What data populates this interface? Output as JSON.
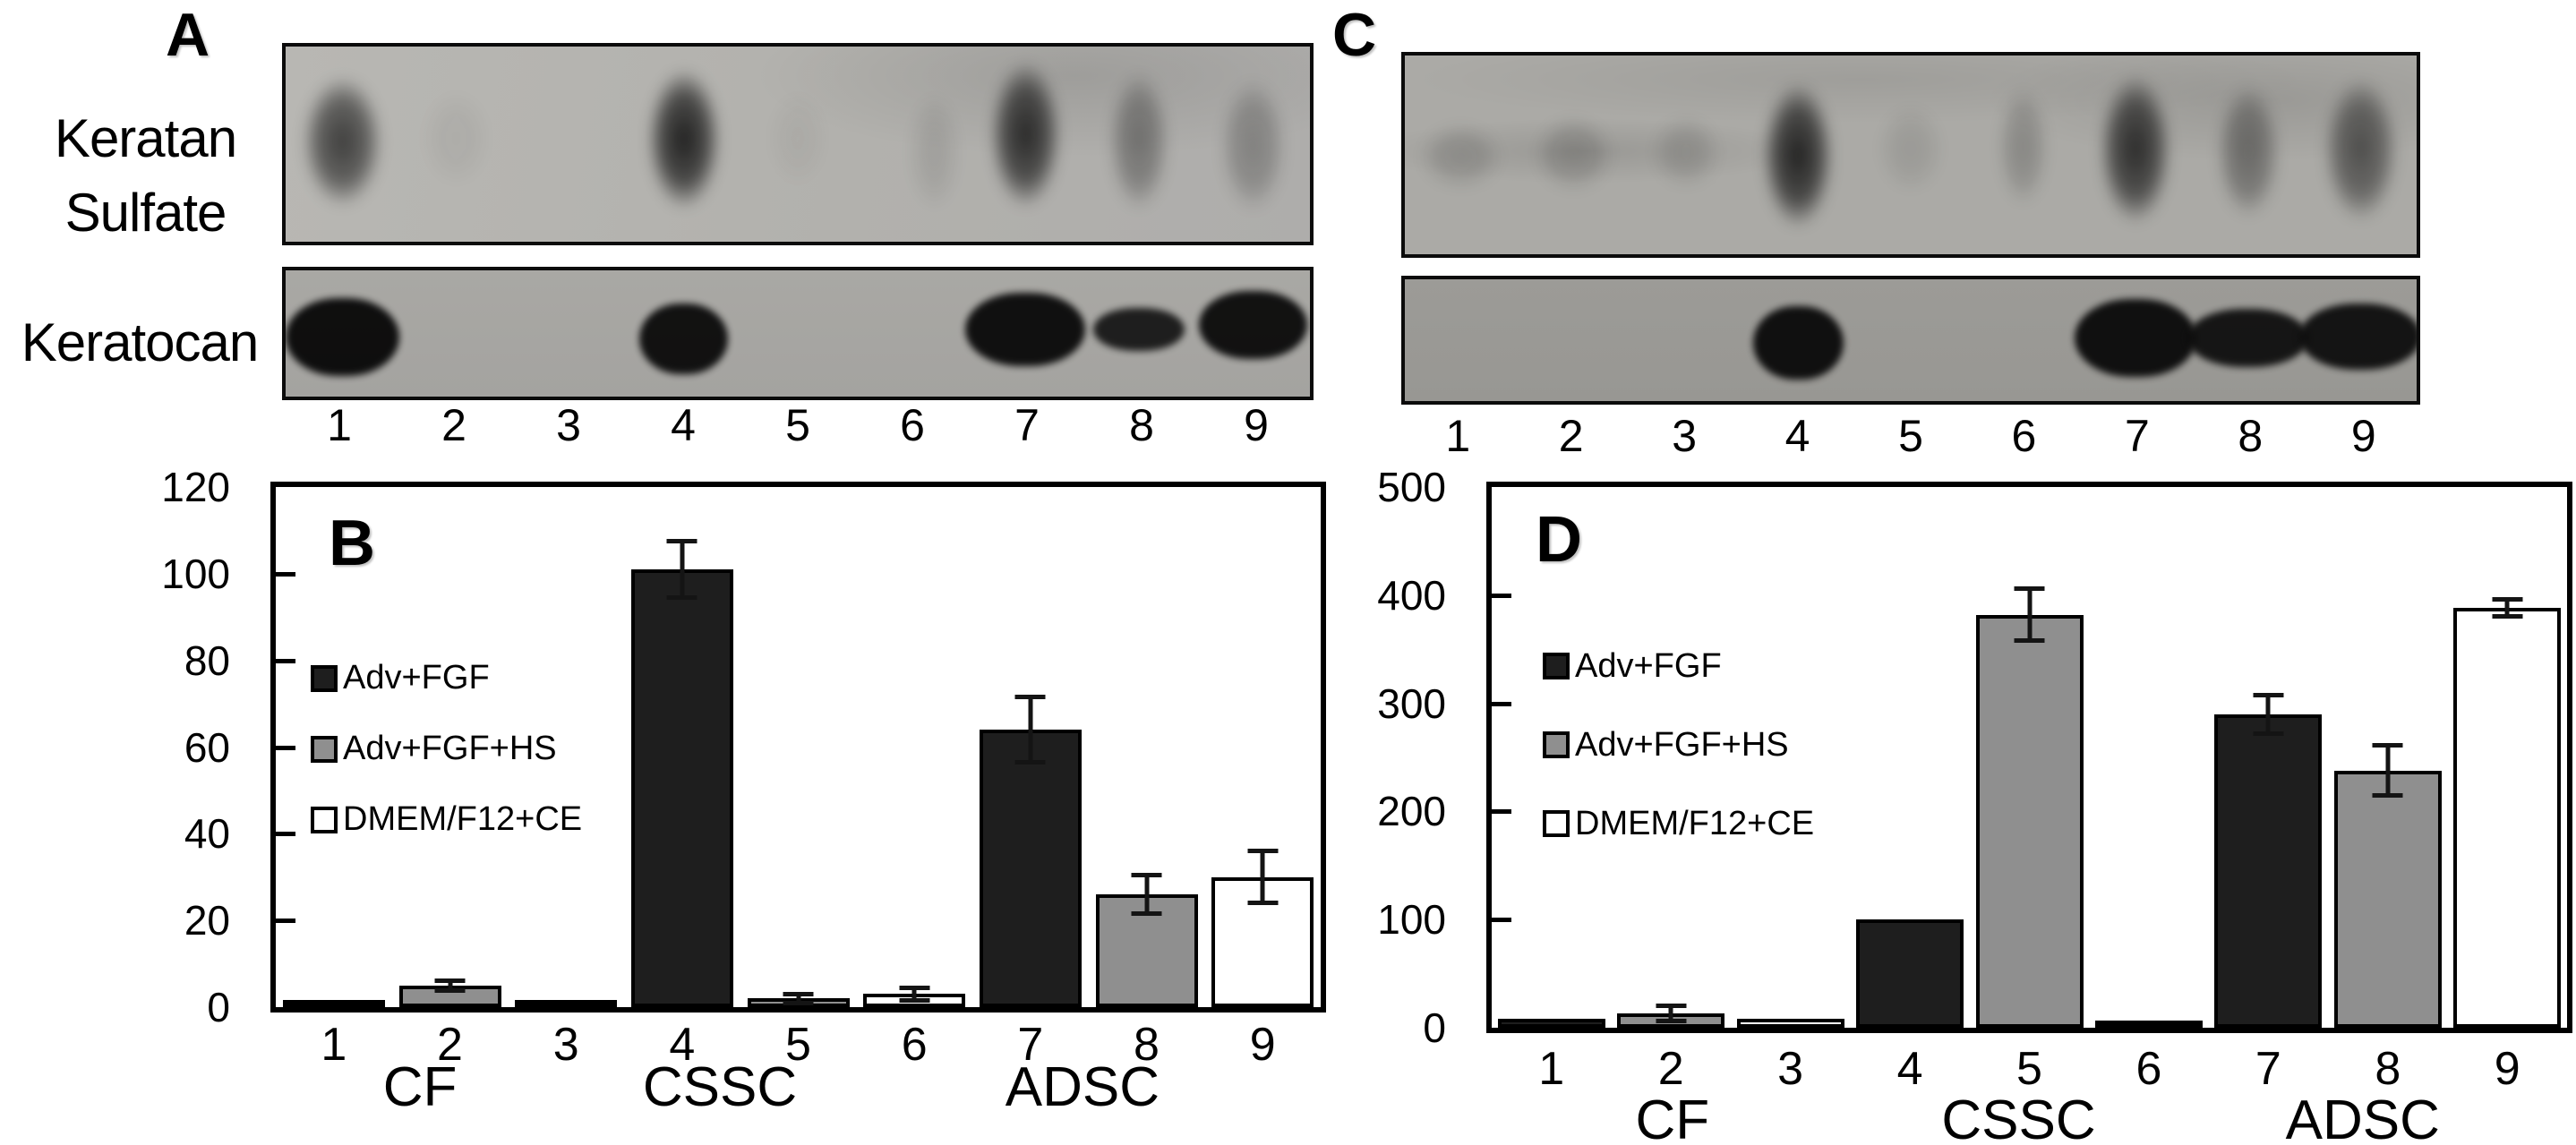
{
  "figure": {
    "panel_a": {
      "letter": "A",
      "blot1_label_line1": "Keratan",
      "blot1_label_line2": "Sulfate",
      "blot2_label": "Keratocan",
      "lane_labels": [
        "1",
        "2",
        "3",
        "4",
        "5",
        "6",
        "7",
        "8",
        "9"
      ],
      "blot1_name": "keratan-sulfate-blot",
      "blot2_name": "keratocan-blot",
      "blot1_bands": [
        {
          "o": 0.7,
          "w": 88,
          "y": 10,
          "h": 86
        },
        {
          "o": 0.05,
          "w": 70,
          "y": 20,
          "h": 60
        },
        {
          "o": 0,
          "w": 0,
          "y": 0,
          "h": 0
        },
        {
          "o": 0.88,
          "w": 80,
          "y": 6,
          "h": 92
        },
        {
          "o": 0.04,
          "w": 60,
          "y": 20,
          "h": 60
        },
        {
          "o": 0.1,
          "w": 55,
          "y": 20,
          "h": 75,
          "xoff": 20
        },
        {
          "o": 0.82,
          "w": 78,
          "y": 2,
          "h": 96
        },
        {
          "o": 0.38,
          "w": 66,
          "y": 8,
          "h": 90
        },
        {
          "o": 0.28,
          "w": 72,
          "y": 12,
          "h": 86
        }
      ],
      "blot2_bands": [
        {
          "o": 0.98,
          "w": 100,
          "y": 22,
          "h": 62
        },
        {
          "o": 0,
          "w": 0,
          "y": 0,
          "h": 0
        },
        {
          "o": 0,
          "w": 0,
          "y": 0,
          "h": 0
        },
        {
          "o": 0.96,
          "w": 78,
          "y": 26,
          "h": 56
        },
        {
          "o": 0,
          "w": 0,
          "y": 0,
          "h": 0
        },
        {
          "o": 0,
          "w": 0,
          "y": 0,
          "h": 0
        },
        {
          "o": 0.97,
          "w": 105,
          "y": 18,
          "h": 58
        },
        {
          "o": 0.88,
          "w": 80,
          "y": 30,
          "h": 34
        },
        {
          "o": 0.96,
          "w": 95,
          "y": 16,
          "h": 54
        }
      ]
    },
    "panel_c": {
      "letter": "C",
      "lane_labels": [
        "1",
        "2",
        "3",
        "4",
        "5",
        "6",
        "7",
        "8",
        "9"
      ],
      "blot1_name": "keratan-sulfate-blot",
      "blot2_name": "keratocan-blot",
      "blot1_bands": [
        {
          "o": 0.16,
          "w": 90,
          "y": 32,
          "h": 42
        },
        {
          "o": 0.18,
          "w": 85,
          "y": 28,
          "h": 48
        },
        {
          "o": 0.14,
          "w": 75,
          "y": 28,
          "h": 46
        },
        {
          "o": 0.86,
          "w": 78,
          "y": 8,
          "h": 94
        },
        {
          "o": 0.1,
          "w": 70,
          "y": 22,
          "h": 55
        },
        {
          "o": 0.22,
          "w": 55,
          "y": 12,
          "h": 75
        },
        {
          "o": 0.8,
          "w": 80,
          "y": 4,
          "h": 96
        },
        {
          "o": 0.42,
          "w": 70,
          "y": 10,
          "h": 85
        },
        {
          "o": 0.58,
          "w": 82,
          "y": 6,
          "h": 92
        }
      ],
      "blot2_bands": [
        {
          "o": 0,
          "w": 0,
          "y": 0,
          "h": 0
        },
        {
          "o": 0,
          "w": 0,
          "y": 0,
          "h": 0
        },
        {
          "o": 0,
          "w": 0,
          "y": 0,
          "h": 0
        },
        {
          "o": 0.97,
          "w": 80,
          "y": 22,
          "h": 60
        },
        {
          "o": 0,
          "w": 0,
          "y": 0,
          "h": 0
        },
        {
          "o": 0,
          "w": 0,
          "y": 0,
          "h": 0
        },
        {
          "o": 0.97,
          "w": 108,
          "y": 16,
          "h": 64
        },
        {
          "o": 0.93,
          "w": 108,
          "y": 24,
          "h": 48
        },
        {
          "o": 0.94,
          "w": 108,
          "y": 20,
          "h": 54
        }
      ]
    }
  },
  "chart_data": [
    {
      "type": "bar",
      "panel_label": "B",
      "categories": [
        "1",
        "2",
        "3",
        "4",
        "5",
        "6",
        "7",
        "8",
        "9"
      ],
      "group_labels": [
        "CF",
        "CSSC",
        "ADSC"
      ],
      "series": [
        {
          "name": "Adv+FGF",
          "fill": "#1e1e1e"
        },
        {
          "name": "Adv+FGF+HS",
          "fill": "#8f8f8f"
        },
        {
          "name": "DMEM/F12+CE",
          "fill": "#ffffff"
        }
      ],
      "bar_series_index": [
        0,
        1,
        2,
        0,
        1,
        2,
        0,
        1,
        2
      ],
      "values": [
        1,
        5,
        1,
        101,
        2,
        3,
        64,
        26,
        30
      ],
      "errors": [
        0.4,
        1.6,
        0.3,
        7,
        1.6,
        2,
        8,
        5,
        6.5
      ],
      "ylim": [
        0,
        120
      ],
      "yticks": [
        0,
        20,
        40,
        60,
        80,
        100,
        120
      ],
      "xlabel": "",
      "ylabel": "",
      "grid": false,
      "legend_position": "inside-upper-left"
    },
    {
      "type": "bar",
      "panel_label": "D",
      "categories": [
        "1",
        "2",
        "3",
        "4",
        "5",
        "6",
        "7",
        "8",
        "9"
      ],
      "group_labels": [
        "CF",
        "CSSC",
        "ADSC"
      ],
      "series": [
        {
          "name": "Adv+FGF",
          "fill": "#1e1e1e"
        },
        {
          "name": "Adv+FGF+HS",
          "fill": "#8f8f8f"
        },
        {
          "name": "DMEM/F12+CE",
          "fill": "#ffffff"
        }
      ],
      "bar_series_index": [
        0,
        1,
        2,
        0,
        1,
        2,
        0,
        1,
        2
      ],
      "values": [
        8,
        13,
        8,
        100,
        382,
        4,
        290,
        238,
        388
      ],
      "errors": [
        3,
        9,
        4,
        4,
        26,
        2,
        20,
        25,
        10
      ],
      "ylim": [
        0,
        500
      ],
      "yticks": [
        0,
        100,
        200,
        300,
        400,
        500
      ],
      "xlabel": "",
      "ylabel": "",
      "grid": false,
      "legend_position": "inside-upper-left"
    }
  ]
}
